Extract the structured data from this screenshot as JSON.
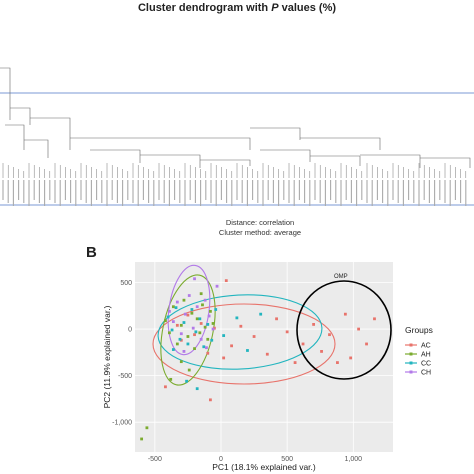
{
  "panelA": {
    "title_prefix": "Cluster dendrogram with ",
    "title_var": "P",
    "title_suffix": " values (%)",
    "distance_label": "Distance:  correlation",
    "method_label": "Cluster method: average"
  },
  "panelB": {
    "label": "B",
    "annotation": "OMP",
    "legend_title": "Groups",
    "colors": {
      "AC": "#e8736b",
      "AH": "#7bab2f",
      "CC": "#22b5bf",
      "CH": "#b27ae8",
      "OMP": "#000000"
    }
  },
  "chart_data": {
    "type": "scatter",
    "xlabel": "PC1 (18.1% explained var.)",
    "ylabel": "PC2 (11.9% explained var.)",
    "xlim": [
      -650,
      1300
    ],
    "ylim": [
      -1320,
      720
    ],
    "xticks": [
      -500,
      0,
      500,
      1000
    ],
    "yticks": [
      500,
      0,
      -500,
      -1000
    ],
    "xtick_labels": [
      "-500",
      "0",
      "500",
      "1,000"
    ],
    "ytick_labels": [
      "500",
      "0",
      "-500",
      "-1,000"
    ],
    "grid": true,
    "legend_position": "right",
    "series": [
      {
        "name": "AC",
        "points": [
          [
            -330,
            40
          ],
          [
            -300,
            -120
          ],
          [
            -250,
            150
          ],
          [
            -200,
            -60
          ],
          [
            -150,
            60
          ],
          [
            -100,
            -260
          ],
          [
            -50,
            10
          ],
          [
            20,
            -310
          ],
          [
            80,
            -180
          ],
          [
            150,
            30
          ],
          [
            250,
            -80
          ],
          [
            350,
            -270
          ],
          [
            420,
            110
          ],
          [
            500,
            -30
          ],
          [
            560,
            -360
          ],
          [
            620,
            -160
          ],
          [
            700,
            50
          ],
          [
            760,
            -240
          ],
          [
            820,
            -60
          ],
          [
            880,
            -360
          ],
          [
            940,
            160
          ],
          [
            980,
            -310
          ],
          [
            1040,
            0
          ],
          [
            1100,
            -160
          ],
          [
            1160,
            110
          ],
          [
            -420,
            -620
          ],
          [
            -80,
            -760
          ],
          [
            40,
            520
          ]
        ]
      },
      {
        "name": "AH",
        "points": [
          [
            -420,
            90
          ],
          [
            -390,
            -40
          ],
          [
            -360,
            240
          ],
          [
            -330,
            -160
          ],
          [
            -300,
            40
          ],
          [
            -280,
            310
          ],
          [
            -250,
            -80
          ],
          [
            -220,
            170
          ],
          [
            -200,
            -210
          ],
          [
            -180,
            110
          ],
          [
            -160,
            -40
          ],
          [
            -140,
            260
          ],
          [
            -120,
            20
          ],
          [
            -100,
            -110
          ],
          [
            -80,
            190
          ],
          [
            -60,
            60
          ],
          [
            -300,
            -350
          ],
          [
            -240,
            -440
          ],
          [
            -150,
            380
          ],
          [
            -380,
            -540
          ],
          [
            -600,
            -1180
          ],
          [
            -560,
            -1060
          ]
        ]
      },
      {
        "name": "CC",
        "points": [
          [
            -400,
            130
          ],
          [
            -370,
            -10
          ],
          [
            -340,
            230
          ],
          [
            -310,
            -110
          ],
          [
            -280,
            70
          ],
          [
            -250,
            -160
          ],
          [
            -220,
            210
          ],
          [
            -190,
            -30
          ],
          [
            -160,
            110
          ],
          [
            -130,
            -190
          ],
          [
            -100,
            50
          ],
          [
            -70,
            -120
          ],
          [
            -40,
            210
          ],
          [
            20,
            -70
          ],
          [
            120,
            120
          ],
          [
            200,
            -230
          ],
          [
            300,
            160
          ],
          [
            -260,
            -560
          ],
          [
            -180,
            -640
          ],
          [
            -360,
            -220
          ]
        ]
      },
      {
        "name": "CH",
        "points": [
          [
            -390,
            190
          ],
          [
            -360,
            80
          ],
          [
            -330,
            290
          ],
          [
            -300,
            -50
          ],
          [
            -270,
            160
          ],
          [
            -240,
            360
          ],
          [
            -210,
            10
          ],
          [
            -180,
            240
          ],
          [
            -150,
            -110
          ],
          [
            -120,
            310
          ],
          [
            -90,
            140
          ],
          [
            -60,
            0
          ],
          [
            -30,
            460
          ],
          [
            -200,
            540
          ],
          [
            -110,
            -200
          ],
          [
            -280,
            -240
          ]
        ]
      },
      {
        "name": "OMP",
        "points": []
      }
    ]
  }
}
